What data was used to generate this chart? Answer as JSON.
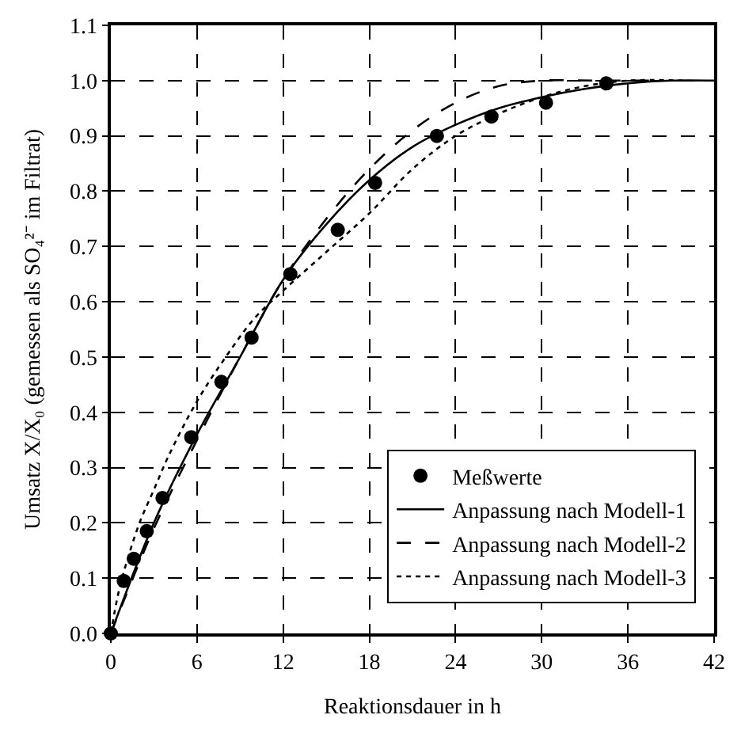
{
  "chart_data": {
    "type": "scatter",
    "xlabel": "Reaktionsdauer in h",
    "ylabel": "Umsatz X/X₀ (gemessen als SO₄²⁻ im Filtrat)",
    "xlim": [
      0,
      42
    ],
    "xticks": [
      0,
      6,
      12,
      18,
      24,
      30,
      36,
      42
    ],
    "ylim": [
      0,
      1.1
    ],
    "yticks": [
      {
        "value": 0,
        "label": "0.0"
      },
      0.1,
      0.2,
      0.3,
      0.4,
      0.5,
      0.6,
      0.7,
      0.8,
      0.9,
      {
        "value": 1,
        "label": "1.0"
      },
      1.1
    ],
    "grid": true,
    "legend": "bottom right",
    "series": [
      {
        "name": "Meßwerte",
        "marker": "circle",
        "color": "#000000",
        "x": [
          0,
          0.9,
          1.6,
          2.5,
          3.6,
          5.6,
          7.7,
          9.8,
          12.5,
          15.8,
          18.4,
          22.7,
          26.5,
          30.3,
          34.5
        ],
        "values": [
          0,
          0.095,
          0.135,
          0.185,
          0.245,
          0.355,
          0.455,
          0.535,
          0.65,
          0.73,
          0.815,
          0.9,
          0.935,
          0.96,
          0.995
        ]
      },
      {
        "name": "Anpassung nach Modell-1",
        "type": "line",
        "line_style": "solid",
        "color": "#000000",
        "x": [
          0,
          3,
          6,
          9,
          12,
          15,
          18,
          21,
          24,
          27,
          30,
          33,
          36,
          39,
          42
        ],
        "values": [
          0,
          0.2,
          0.36,
          0.5,
          0.64,
          0.74,
          0.82,
          0.88,
          0.92,
          0.95,
          0.97,
          0.985,
          0.995,
          1.0,
          1.0
        ]
      },
      {
        "name": "Anpassung nach Modell-2",
        "type": "line",
        "line_style": "dashed",
        "color": "#000000",
        "x": [
          0,
          3,
          6,
          9,
          12,
          15,
          18,
          21,
          24,
          27,
          30,
          34,
          38
        ],
        "values": [
          0,
          0.19,
          0.35,
          0.5,
          0.64,
          0.75,
          0.84,
          0.91,
          0.96,
          0.99,
          1.0,
          1.0,
          1.0
        ]
      },
      {
        "name": "Anpassung nach Modell-3",
        "type": "line",
        "line_style": "dotted",
        "color": "#000000",
        "x": [
          0,
          0.5,
          1,
          2,
          3,
          4,
          6,
          8,
          10,
          12,
          15,
          18,
          21,
          24,
          27,
          30,
          33,
          36,
          40
        ],
        "values": [
          0,
          0.07,
          0.12,
          0.2,
          0.26,
          0.32,
          0.42,
          0.5,
          0.57,
          0.62,
          0.69,
          0.76,
          0.84,
          0.9,
          0.94,
          0.97,
          0.99,
          1.0,
          1.0
        ]
      }
    ]
  }
}
